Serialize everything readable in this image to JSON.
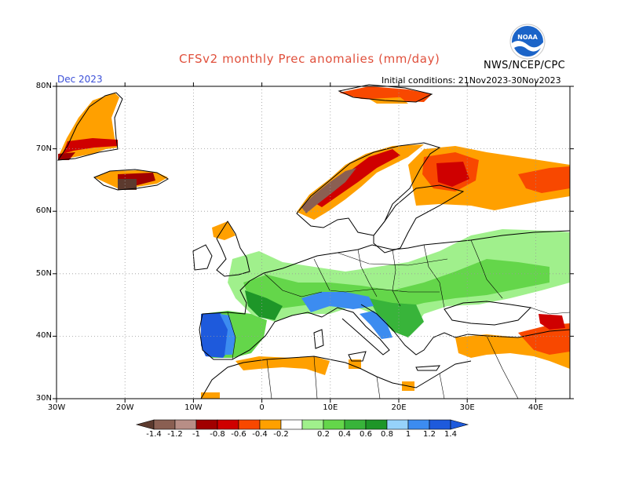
{
  "header": {
    "title": "CFSv2 monthly Prec anomalies (mm/day)",
    "month": "Dec 2023",
    "agency": "NWS/NCEP/CPC",
    "logo_text": "NOAA",
    "initial_conditions": "Initial conditions: 21Nov2023-30Nov2023"
  },
  "axes": {
    "lat_labels": [
      "80N",
      "70N",
      "60N",
      "50N",
      "40N",
      "30N"
    ],
    "lon_labels": [
      "30W",
      "20W",
      "10W",
      "0",
      "10E",
      "20E",
      "30E",
      "40E"
    ]
  },
  "colorbar": {
    "labels": [
      "-1.4",
      "-1.2",
      "-1",
      "-0.8",
      "-0.6",
      "-0.4",
      "-0.2",
      "0.2",
      "0.4",
      "0.6",
      "0.8",
      "1",
      "1.2",
      "1.4"
    ],
    "colors": [
      "#5c3a2e",
      "#8a5f52",
      "#b88e86",
      "#a10000",
      "#cf0000",
      "#f84800",
      "#ffa000",
      "#ffffff",
      "#a0f08c",
      "#64d64a",
      "#38b43a",
      "#1e9628",
      "#96d2fa",
      "#3c8cf0",
      "#1e5adc",
      "#1e5adc"
    ]
  }
}
